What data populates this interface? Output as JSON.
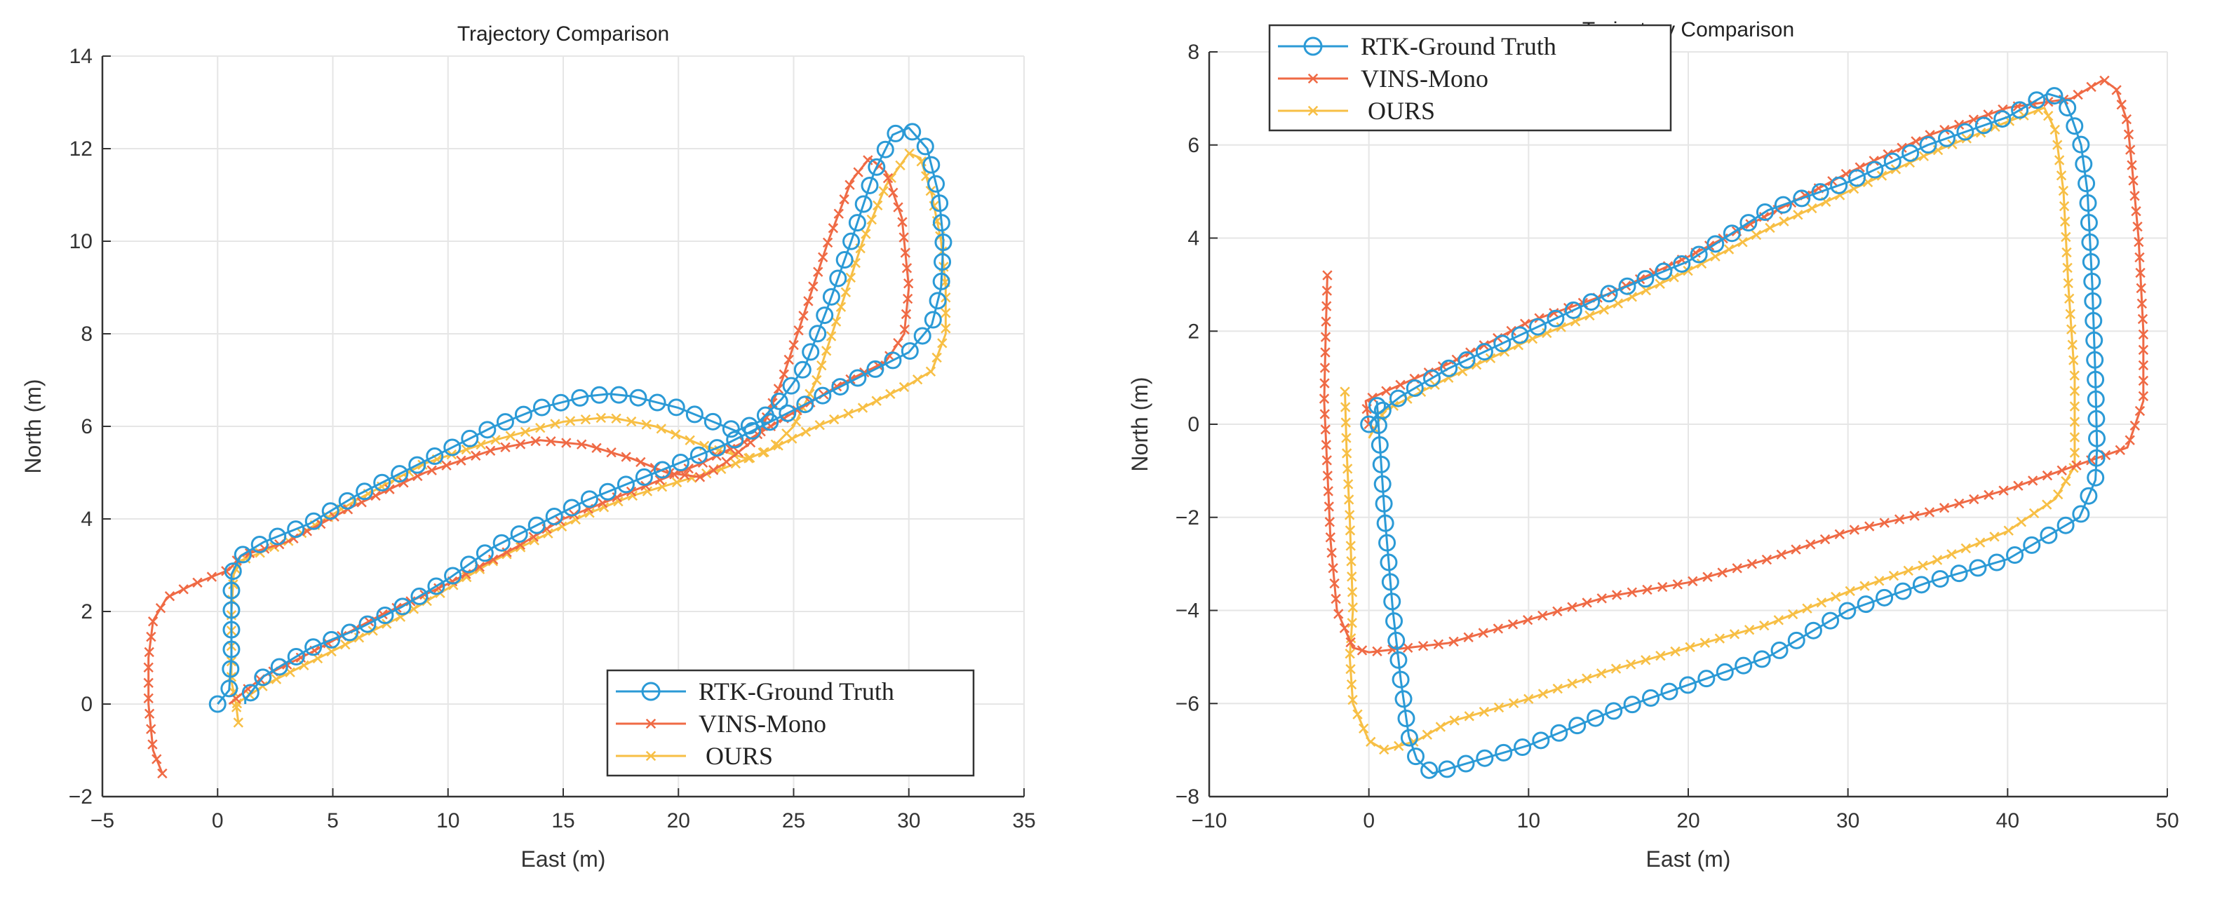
{
  "chart_data": [
    {
      "type": "line",
      "title": "Trajectory Comparison",
      "xlabel": "East (m)",
      "ylabel": "North (m)",
      "xlim": [
        -5,
        35
      ],
      "ylim": [
        -2,
        14
      ],
      "xticks": [
        -5,
        0,
        5,
        10,
        15,
        20,
        25,
        30,
        35
      ],
      "yticks": [
        -2,
        0,
        2,
        4,
        6,
        8,
        10,
        12,
        14
      ],
      "xtick_labels": [
        "−5",
        "0",
        "5",
        "10",
        "15",
        "20",
        "25",
        "30",
        "35"
      ],
      "ytick_labels": [
        "−2",
        "0",
        "2",
        "4",
        "6",
        "8",
        "10",
        "12",
        "14"
      ],
      "grid": true,
      "legend_position": "bottom-right",
      "series": [
        {
          "name": "RTK-Ground Truth",
          "color": "#2b9ad6",
          "marker": "circle",
          "points": [
            [
              0,
              0
            ],
            [
              0.5,
              0.3
            ],
            [
              0.6,
              1
            ],
            [
              0.6,
              2
            ],
            [
              0.6,
              2.8
            ],
            [
              1,
              3.2
            ],
            [
              2,
              3.5
            ],
            [
              4,
              3.9
            ],
            [
              6,
              4.5
            ],
            [
              8,
              5
            ],
            [
              10,
              5.5
            ],
            [
              12,
              6
            ],
            [
              14,
              6.4
            ],
            [
              16,
              6.65
            ],
            [
              17,
              6.7
            ],
            [
              18,
              6.65
            ],
            [
              20,
              6.4
            ],
            [
              21.5,
              6.1
            ],
            [
              22.5,
              5.9
            ],
            [
              23.5,
              6.1
            ],
            [
              24.5,
              6.6
            ],
            [
              25.5,
              7.3
            ],
            [
              26.5,
              8.6
            ],
            [
              27.5,
              10
            ],
            [
              28.5,
              11.5
            ],
            [
              29.3,
              12.3
            ],
            [
              30,
              12.45
            ],
            [
              30.8,
              12
            ],
            [
              31.3,
              11
            ],
            [
              31.5,
              10
            ],
            [
              31.4,
              9
            ],
            [
              31,
              8.2
            ],
            [
              30,
              7.6
            ],
            [
              28,
              7.1
            ],
            [
              26,
              6.6
            ],
            [
              24,
              6.1
            ],
            [
              22,
              5.6
            ],
            [
              20,
              5.2
            ],
            [
              18,
              4.8
            ],
            [
              16,
              4.4
            ],
            [
              14,
              3.9
            ],
            [
              12,
              3.4
            ],
            [
              10,
              2.7
            ],
            [
              8,
              2.1
            ],
            [
              6,
              1.6
            ],
            [
              4,
              1.2
            ],
            [
              2,
              0.6
            ],
            [
              1.2,
              0.1
            ],
            [
              1.2,
              0
            ]
          ]
        },
        {
          "name": "VINS-Mono",
          "color": "#ef6a45",
          "marker": "x",
          "points": [
            [
              -2.4,
              -1.5
            ],
            [
              -2.8,
              -1
            ],
            [
              -3,
              0
            ],
            [
              -3,
              1
            ],
            [
              -2.8,
              1.8
            ],
            [
              -2.2,
              2.3
            ],
            [
              -1,
              2.6
            ],
            [
              0.5,
              2.9
            ],
            [
              1,
              3.2
            ],
            [
              3,
              3.5
            ],
            [
              6,
              4.3
            ],
            [
              9,
              5
            ],
            [
              12,
              5.5
            ],
            [
              14,
              5.7
            ],
            [
              16,
              5.6
            ],
            [
              18,
              5.3
            ],
            [
              19.5,
              5
            ],
            [
              21,
              4.9
            ],
            [
              22,
              5.2
            ],
            [
              23.5,
              5.8
            ],
            [
              24.5,
              7
            ],
            [
              25.5,
              8.5
            ],
            [
              26.5,
              10
            ],
            [
              27.5,
              11.3
            ],
            [
              28.3,
              11.8
            ],
            [
              29,
              11.5
            ],
            [
              29.7,
              10.5
            ],
            [
              30,
              9
            ],
            [
              29.8,
              8
            ],
            [
              29,
              7.4
            ],
            [
              27,
              6.9
            ],
            [
              25,
              6.3
            ],
            [
              23,
              5.7
            ],
            [
              21,
              5.2
            ],
            [
              19,
              4.8
            ],
            [
              17,
              4.4
            ],
            [
              15,
              4
            ],
            [
              13,
              3.4
            ],
            [
              10,
              2.6
            ],
            [
              7,
              1.9
            ],
            [
              4,
              1.1
            ],
            [
              2,
              0.6
            ],
            [
              1,
              0.2
            ],
            [
              0.5,
              0
            ]
          ]
        },
        {
          "name": "OURS",
          "color": "#f7bf45",
          "marker": "x",
          "points": [
            [
              0.9,
              -0.4
            ],
            [
              0.8,
              0
            ],
            [
              0.6,
              0.5
            ],
            [
              0.6,
              1
            ],
            [
              0.6,
              2
            ],
            [
              0.7,
              2.8
            ],
            [
              1,
              3.1
            ],
            [
              3,
              3.5
            ],
            [
              6,
              4.4
            ],
            [
              9,
              5.2
            ],
            [
              12,
              5.7
            ],
            [
              15,
              6.1
            ],
            [
              17,
              6.2
            ],
            [
              19,
              6
            ],
            [
              21,
              5.6
            ],
            [
              23,
              5.3
            ],
            [
              24,
              5.5
            ],
            [
              25,
              6
            ],
            [
              26,
              7
            ],
            [
              27,
              8.5
            ],
            [
              28,
              10
            ],
            [
              29,
              11.2
            ],
            [
              30,
              11.9
            ],
            [
              30.5,
              11.8
            ],
            [
              31,
              11
            ],
            [
              31.4,
              10
            ],
            [
              31.6,
              9
            ],
            [
              31.6,
              8
            ],
            [
              31,
              7.2
            ],
            [
              30,
              6.9
            ],
            [
              28,
              6.4
            ],
            [
              26,
              6
            ],
            [
              24,
              5.5
            ],
            [
              22,
              5.1
            ],
            [
              20,
              4.8
            ],
            [
              18,
              4.5
            ],
            [
              16,
              4.1
            ],
            [
              14,
              3.6
            ],
            [
              12,
              3.1
            ],
            [
              10,
              2.5
            ],
            [
              8,
              1.9
            ],
            [
              6,
              1.4
            ],
            [
              4,
              0.9
            ],
            [
              2,
              0.4
            ],
            [
              0.8,
              0
            ]
          ]
        }
      ]
    },
    {
      "type": "line",
      "title": "Trajectory Comparison",
      "xlabel": "East (m)",
      "ylabel": "North (m)",
      "xlim": [
        -10,
        50
      ],
      "ylim": [
        -8,
        8
      ],
      "xticks": [
        -10,
        0,
        10,
        20,
        30,
        40,
        50
      ],
      "yticks": [
        -8,
        -6,
        -4,
        -2,
        0,
        2,
        4,
        6,
        8
      ],
      "xtick_labels": [
        "−10",
        "0",
        "10",
        "20",
        "30",
        "40",
        "50"
      ],
      "ytick_labels": [
        "−8",
        "−6",
        "−4",
        "−2",
        "0",
        "2",
        "4",
        "6",
        "8"
      ],
      "grid": true,
      "legend_position": "top-left",
      "series": [
        {
          "name": "RTK-Ground Truth",
          "color": "#2b9ad6",
          "marker": "circle",
          "points": [
            [
              0,
              0
            ],
            [
              0.5,
              0.2
            ],
            [
              2,
              0.6
            ],
            [
              5,
              1.2
            ],
            [
              10,
              2
            ],
            [
              15,
              2.8
            ],
            [
              20,
              3.5
            ],
            [
              25,
              4.6
            ],
            [
              30,
              5.2
            ],
            [
              35,
              6
            ],
            [
              40,
              6.6
            ],
            [
              42.5,
              7.1
            ],
            [
              43.5,
              7
            ],
            [
              44,
              6.6
            ],
            [
              44.6,
              6
            ],
            [
              45,
              5
            ],
            [
              45.3,
              3
            ],
            [
              45.5,
              1
            ],
            [
              45.6,
              -0.5
            ],
            [
              45.5,
              -1.2
            ],
            [
              44.5,
              -2
            ],
            [
              40,
              -2.9
            ],
            [
              35,
              -3.4
            ],
            [
              30,
              -4
            ],
            [
              25,
              -5
            ],
            [
              20,
              -5.6
            ],
            [
              15,
              -6.2
            ],
            [
              10,
              -6.9
            ],
            [
              5,
              -7.4
            ],
            [
              4,
              -7.5
            ],
            [
              3,
              -7.2
            ],
            [
              2.5,
              -6.7
            ],
            [
              2,
              -5.5
            ],
            [
              1.5,
              -4
            ],
            [
              1,
              -2
            ],
            [
              0.7,
              -0.5
            ],
            [
              0.5,
              0.5
            ]
          ]
        },
        {
          "name": "VINS-Mono",
          "color": "#ef6a45",
          "marker": "x",
          "points": [
            [
              -2.6,
              3.2
            ],
            [
              -2.7,
              2
            ],
            [
              -2.8,
              0.5
            ],
            [
              -2.6,
              -1
            ],
            [
              -2.4,
              -2.5
            ],
            [
              -2,
              -4
            ],
            [
              -1,
              -4.8
            ],
            [
              0,
              -4.9
            ],
            [
              5,
              -4.7
            ],
            [
              10,
              -4.2
            ],
            [
              15,
              -3.7
            ],
            [
              20,
              -3.4
            ],
            [
              25,
              -2.9
            ],
            [
              30,
              -2.3
            ],
            [
              35,
              -1.9
            ],
            [
              40,
              -1.4
            ],
            [
              45,
              -0.8
            ],
            [
              47.5,
              -0.5
            ],
            [
              48.5,
              0.5
            ],
            [
              48.5,
              2
            ],
            [
              48.2,
              4
            ],
            [
              47.8,
              5.5
            ],
            [
              47.5,
              6.5
            ],
            [
              46.8,
              7.2
            ],
            [
              46,
              7.4
            ],
            [
              44,
              7
            ],
            [
              40,
              6.8
            ],
            [
              35,
              6.2
            ],
            [
              30,
              5.4
            ],
            [
              25,
              4.5
            ],
            [
              20,
              3.6
            ],
            [
              15,
              2.8
            ],
            [
              10,
              2.2
            ],
            [
              5,
              1.3
            ],
            [
              1,
              0.7
            ],
            [
              -0.2,
              0.5
            ],
            [
              0,
              0
            ]
          ]
        },
        {
          "name": "OURS",
          "color": "#f7bf45",
          "marker": "x",
          "points": [
            [
              -1.5,
              0.7
            ],
            [
              -1.4,
              -0.5
            ],
            [
              -1.2,
              -2
            ],
            [
              -1,
              -4
            ],
            [
              -1.2,
              -5
            ],
            [
              -1,
              -6
            ],
            [
              0,
              -6.8
            ],
            [
              1,
              -7
            ],
            [
              3,
              -6.8
            ],
            [
              5,
              -6.4
            ],
            [
              10,
              -5.9
            ],
            [
              15,
              -5.3
            ],
            [
              20,
              -4.8
            ],
            [
              25,
              -4.3
            ],
            [
              30,
              -3.6
            ],
            [
              35,
              -3
            ],
            [
              40,
              -2.3
            ],
            [
              43,
              -1.6
            ],
            [
              44.2,
              -0.9
            ],
            [
              44.2,
              1
            ],
            [
              43.8,
              3
            ],
            [
              43.5,
              5
            ],
            [
              43,
              6.3
            ],
            [
              42.3,
              6.8
            ],
            [
              40,
              6.5
            ],
            [
              35,
              5.8
            ],
            [
              30,
              5
            ],
            [
              25,
              4.2
            ],
            [
              20,
              3.3
            ],
            [
              15,
              2.5
            ],
            [
              10,
              1.8
            ],
            [
              5,
              1
            ],
            [
              1,
              0.3
            ],
            [
              0,
              -0.3
            ]
          ]
        }
      ]
    }
  ]
}
